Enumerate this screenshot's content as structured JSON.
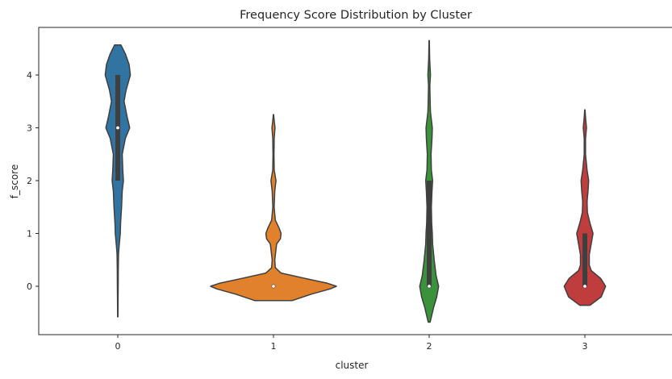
{
  "chart_data": {
    "type": "violin",
    "title": "Frequency Score Distribution by Cluster",
    "xlabel": "cluster",
    "ylabel": "f_score",
    "categories": [
      "0",
      "1",
      "2",
      "3"
    ],
    "y_ticks": [
      "0",
      "1",
      "2",
      "3",
      "4"
    ],
    "ylim": [
      -0.9,
      4.95
    ],
    "grid": false,
    "colors": [
      "#3274a1",
      "#e1812c",
      "#3a923a",
      "#c03d3e"
    ],
    "stat_colors": {
      "outline": "#3f3f3f",
      "box": "#3f3f3f",
      "median": "#ffffff"
    },
    "violins": [
      {
        "category": "0",
        "profile": [
          [
            -0.58,
            0.002
          ],
          [
            -0.3,
            0.004
          ],
          [
            0,
            0.006
          ],
          [
            0.3,
            0.008
          ],
          [
            0.6,
            0.012
          ],
          [
            0.75,
            0.02
          ],
          [
            1.0,
            0.04
          ],
          [
            1.2,
            0.045
          ],
          [
            1.5,
            0.06
          ],
          [
            1.8,
            0.07
          ],
          [
            2.0,
            0.09
          ],
          [
            2.2,
            0.08
          ],
          [
            2.5,
            0.07
          ],
          [
            2.8,
            0.12
          ],
          [
            3.0,
            0.19
          ],
          [
            3.2,
            0.15
          ],
          [
            3.5,
            0.1
          ],
          [
            3.7,
            0.13
          ],
          [
            4.0,
            0.2
          ],
          [
            4.2,
            0.18
          ],
          [
            4.4,
            0.12
          ],
          [
            4.57,
            0.05
          ]
        ],
        "q1": 2,
        "median": 3,
        "q3": 4,
        "whisker_low": 2,
        "whisker_high": 4
      },
      {
        "category": "1",
        "profile": [
          [
            -0.27,
            0.3
          ],
          [
            -0.15,
            0.6
          ],
          [
            -0.05,
            0.9
          ],
          [
            0.0,
            1.0
          ],
          [
            0.06,
            0.85
          ],
          [
            0.15,
            0.5
          ],
          [
            0.25,
            0.12
          ],
          [
            0.35,
            0.03
          ],
          [
            0.5,
            0.02
          ],
          [
            0.8,
            0.05
          ],
          [
            0.9,
            0.11
          ],
          [
            1.0,
            0.12
          ],
          [
            1.1,
            0.09
          ],
          [
            1.25,
            0.03
          ],
          [
            1.5,
            0.01
          ],
          [
            1.8,
            0.02
          ],
          [
            2.0,
            0.04
          ],
          [
            2.2,
            0.012
          ],
          [
            2.5,
            0.008
          ],
          [
            2.8,
            0.012
          ],
          [
            3.0,
            0.025
          ],
          [
            3.15,
            0.01
          ],
          [
            3.25,
            0.003
          ]
        ],
        "q1": 0,
        "median": 0,
        "q3": 0,
        "whisker_low": 0,
        "whisker_high": 0
      },
      {
        "category": "2",
        "profile": [
          [
            -0.68,
            0.015
          ],
          [
            -0.4,
            0.07
          ],
          [
            -0.2,
            0.12
          ],
          [
            0.0,
            0.15
          ],
          [
            0.2,
            0.11
          ],
          [
            0.5,
            0.08
          ],
          [
            0.8,
            0.055
          ],
          [
            1.0,
            0.05
          ],
          [
            1.2,
            0.04
          ],
          [
            1.5,
            0.035
          ],
          [
            1.8,
            0.045
          ],
          [
            2.0,
            0.055
          ],
          [
            2.2,
            0.035
          ],
          [
            2.5,
            0.03
          ],
          [
            2.8,
            0.045
          ],
          [
            3.0,
            0.05
          ],
          [
            3.3,
            0.02
          ],
          [
            3.5,
            0.015
          ],
          [
            3.8,
            0.01
          ],
          [
            4.0,
            0.02
          ],
          [
            4.3,
            0.008
          ],
          [
            4.65,
            0.002
          ]
        ],
        "q1": 0,
        "median": 0,
        "q3": 2,
        "whisker_low": 0,
        "whisker_high": 2
      },
      {
        "category": "3",
        "profile": [
          [
            -0.36,
            0.08
          ],
          [
            -0.2,
            0.26
          ],
          [
            0.0,
            0.33
          ],
          [
            0.15,
            0.25
          ],
          [
            0.3,
            0.1
          ],
          [
            0.4,
            0.07
          ],
          [
            0.6,
            0.07
          ],
          [
            0.8,
            0.1
          ],
          [
            1.0,
            0.13
          ],
          [
            1.2,
            0.08
          ],
          [
            1.4,
            0.04
          ],
          [
            1.6,
            0.035
          ],
          [
            1.8,
            0.05
          ],
          [
            2.0,
            0.06
          ],
          [
            2.2,
            0.035
          ],
          [
            2.5,
            0.01
          ],
          [
            2.8,
            0.01
          ],
          [
            3.0,
            0.025
          ],
          [
            3.2,
            0.01
          ],
          [
            3.34,
            0.002
          ]
        ],
        "q1": 0,
        "median": 0,
        "q3": 1,
        "whisker_low": 0,
        "whisker_high": 1
      }
    ]
  }
}
